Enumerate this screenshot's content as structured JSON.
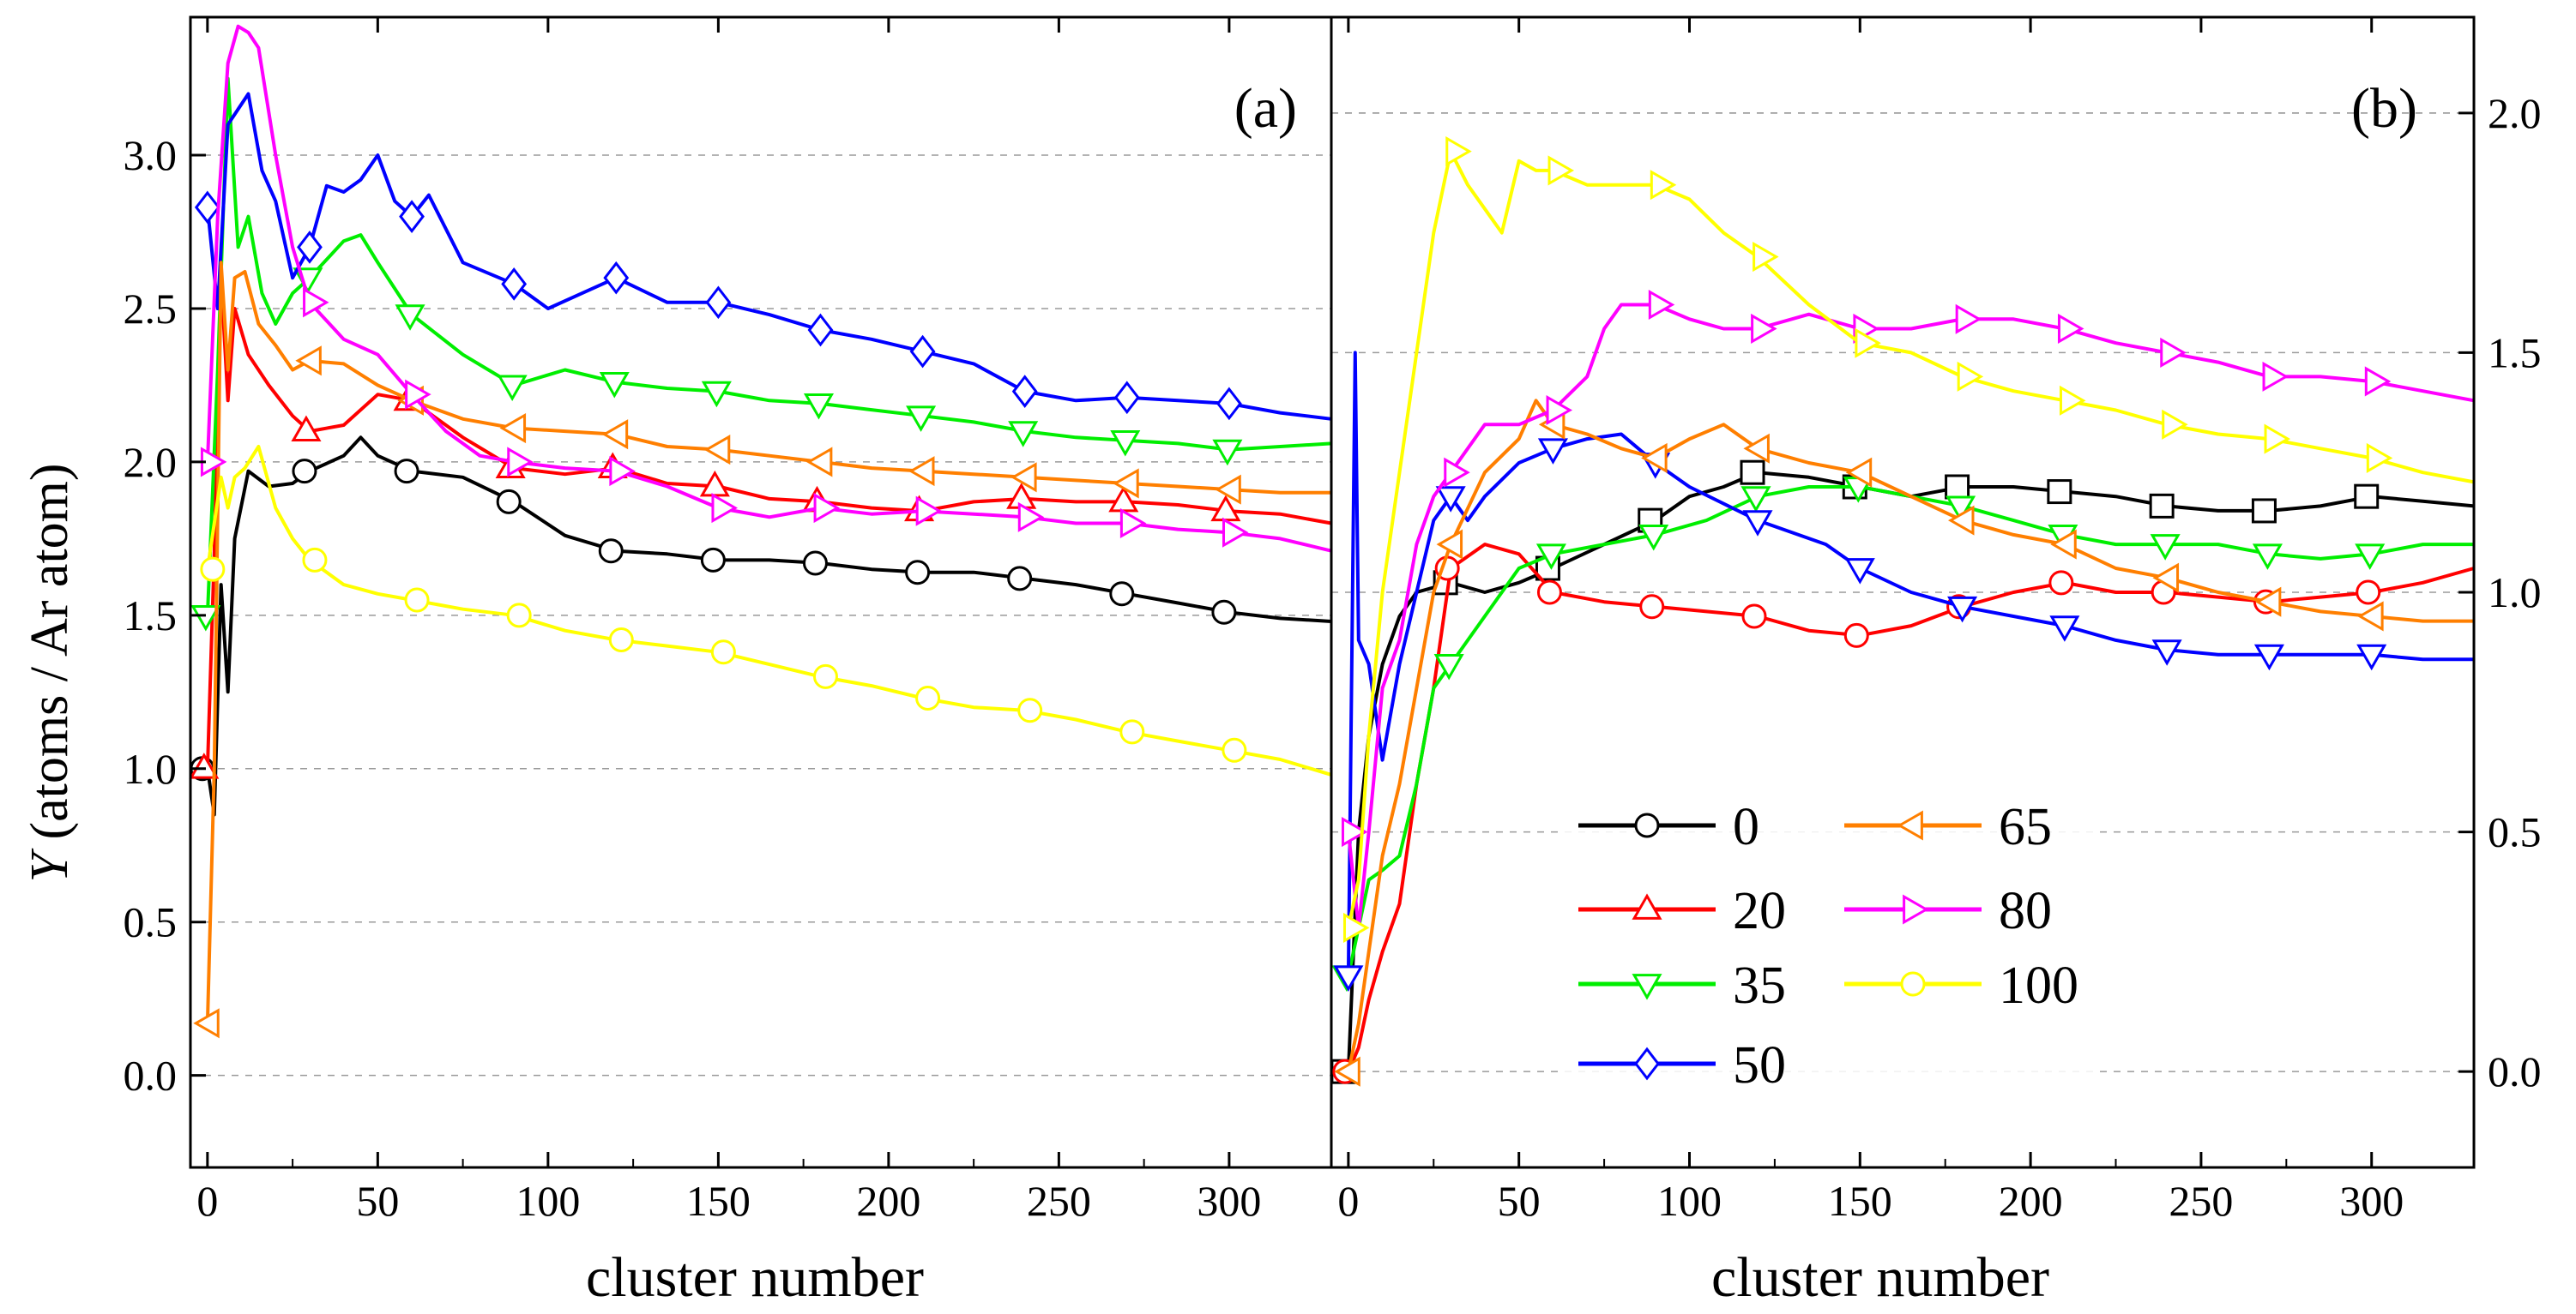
{
  "chart_data": [
    {
      "type": "line",
      "panel_label": "(a)",
      "xlabel": "cluster number",
      "ylabel_italic": "Y",
      "ylabel_rest": " (atoms / Ar atom)",
      "xlim": [
        -5,
        330
      ],
      "ylim": [
        -0.3,
        3.45
      ],
      "xticks": [
        0,
        50,
        100,
        150,
        200,
        250,
        300
      ],
      "xtick_labels": [
        "0",
        "50",
        "100",
        "150",
        "200",
        "250",
        "300"
      ],
      "yticks": [
        0.0,
        0.5,
        1.0,
        1.5,
        2.0,
        2.5,
        3.0
      ],
      "ytick_labels": [
        "0.0",
        "0.5",
        "1.0",
        "1.5",
        "2.0",
        "2.5",
        "3.0"
      ],
      "y_axis_side": "left",
      "grid": "horizontal dashed",
      "series": [
        {
          "name": "0",
          "color": "#000000",
          "marker": "circle",
          "x": [
            0,
            2,
            4,
            6,
            8,
            12,
            18,
            25,
            30,
            40,
            45,
            50,
            60,
            75,
            90,
            105,
            120,
            135,
            150,
            165,
            180,
            195,
            210,
            225,
            240,
            255,
            270,
            285,
            300,
            315,
            330
          ],
          "y": [
            1.0,
            0.85,
            1.6,
            1.25,
            1.75,
            1.97,
            1.92,
            1.93,
            1.97,
            2.02,
            2.08,
            2.02,
            1.97,
            1.95,
            1.87,
            1.76,
            1.71,
            1.7,
            1.68,
            1.68,
            1.67,
            1.65,
            1.64,
            1.64,
            1.62,
            1.6,
            1.57,
            1.54,
            1.51,
            1.49,
            1.48
          ]
        },
        {
          "name": "20",
          "color": "#ff0000",
          "marker": "triangle-up",
          "x": [
            0,
            2,
            4,
            6,
            8,
            12,
            18,
            25,
            30,
            40,
            50,
            60,
            75,
            90,
            105,
            120,
            135,
            150,
            165,
            180,
            195,
            210,
            225,
            240,
            255,
            270,
            285,
            300,
            315,
            330
          ],
          "y": [
            1.0,
            1.7,
            2.6,
            2.2,
            2.5,
            2.35,
            2.25,
            2.15,
            2.1,
            2.12,
            2.22,
            2.2,
            2.08,
            1.98,
            1.96,
            1.98,
            1.93,
            1.92,
            1.88,
            1.87,
            1.85,
            1.84,
            1.87,
            1.88,
            1.87,
            1.87,
            1.86,
            1.84,
            1.83,
            1.8
          ]
        },
        {
          "name": "35",
          "color": "#00ee00",
          "marker": "triangle-down",
          "x": [
            0,
            3,
            6,
            9,
            12,
            16,
            20,
            25,
            30,
            40,
            45,
            50,
            60,
            75,
            90,
            105,
            120,
            135,
            150,
            165,
            180,
            195,
            210,
            225,
            240,
            255,
            270,
            285,
            300,
            315,
            330
          ],
          "y": [
            1.5,
            2.3,
            3.25,
            2.7,
            2.8,
            2.55,
            2.45,
            2.55,
            2.6,
            2.72,
            2.74,
            2.65,
            2.48,
            2.35,
            2.25,
            2.3,
            2.26,
            2.24,
            2.23,
            2.2,
            2.19,
            2.17,
            2.15,
            2.13,
            2.1,
            2.08,
            2.07,
            2.06,
            2.04,
            2.05,
            2.06
          ]
        },
        {
          "name": "50",
          "color": "#0000ff",
          "marker": "diamond",
          "x": [
            0,
            3,
            6,
            9,
            12,
            16,
            20,
            25,
            30,
            35,
            40,
            45,
            50,
            55,
            60,
            65,
            75,
            90,
            100,
            110,
            120,
            135,
            150,
            165,
            180,
            195,
            210,
            225,
            240,
            255,
            270,
            285,
            300,
            315,
            330
          ],
          "y": [
            2.83,
            2.5,
            3.1,
            3.15,
            3.2,
            2.95,
            2.85,
            2.6,
            2.7,
            2.9,
            2.88,
            2.92,
            3.0,
            2.85,
            2.8,
            2.87,
            2.65,
            2.58,
            2.5,
            2.55,
            2.6,
            2.52,
            2.52,
            2.48,
            2.43,
            2.4,
            2.36,
            2.32,
            2.23,
            2.2,
            2.21,
            2.2,
            2.19,
            2.16,
            2.14
          ]
        },
        {
          "name": "65",
          "color": "#ff7f00",
          "marker": "triangle-left",
          "x": [
            0,
            2,
            4,
            6,
            8,
            11,
            15,
            20,
            25,
            30,
            40,
            50,
            60,
            75,
            90,
            105,
            120,
            135,
            150,
            165,
            180,
            195,
            210,
            225,
            240,
            255,
            270,
            285,
            300,
            315,
            330
          ],
          "y": [
            0.17,
            1.0,
            2.65,
            2.3,
            2.6,
            2.62,
            2.45,
            2.38,
            2.3,
            2.33,
            2.32,
            2.25,
            2.2,
            2.14,
            2.11,
            2.1,
            2.09,
            2.05,
            2.04,
            2.02,
            2.0,
            1.98,
            1.97,
            1.96,
            1.95,
            1.94,
            1.93,
            1.92,
            1.91,
            1.9,
            1.9
          ]
        },
        {
          "name": "80",
          "color": "#ff00ff",
          "marker": "triangle-right",
          "x": [
            0,
            3,
            6,
            9,
            12,
            15,
            20,
            25,
            30,
            40,
            50,
            60,
            70,
            80,
            90,
            105,
            120,
            135,
            150,
            165,
            180,
            195,
            210,
            225,
            240,
            255,
            270,
            285,
            300,
            315,
            330
          ],
          "y": [
            2.0,
            2.8,
            3.3,
            3.42,
            3.4,
            3.35,
            3.0,
            2.7,
            2.52,
            2.4,
            2.35,
            2.22,
            2.1,
            2.02,
            2.0,
            1.98,
            1.97,
            1.92,
            1.85,
            1.82,
            1.85,
            1.83,
            1.84,
            1.83,
            1.82,
            1.8,
            1.8,
            1.78,
            1.77,
            1.75,
            1.71
          ]
        },
        {
          "name": "100",
          "color": "#ffff00",
          "marker": "circle",
          "x": [
            0,
            2,
            4,
            6,
            8,
            11,
            15,
            20,
            25,
            30,
            40,
            50,
            60,
            75,
            90,
            105,
            120,
            135,
            150,
            165,
            180,
            195,
            210,
            225,
            240,
            255,
            270,
            285,
            300,
            315,
            330
          ],
          "y": [
            1.65,
            1.8,
            1.95,
            1.85,
            1.95,
            1.98,
            2.05,
            1.85,
            1.75,
            1.68,
            1.6,
            1.57,
            1.55,
            1.52,
            1.5,
            1.45,
            1.42,
            1.4,
            1.38,
            1.34,
            1.3,
            1.27,
            1.23,
            1.2,
            1.19,
            1.16,
            1.12,
            1.09,
            1.06,
            1.03,
            0.98
          ]
        }
      ]
    },
    {
      "type": "line",
      "panel_label": "(b)",
      "xlabel": "cluster number",
      "xlim": [
        -5,
        330
      ],
      "ylim": [
        -0.2,
        2.2
      ],
      "xticks": [
        0,
        50,
        100,
        150,
        200,
        250,
        300
      ],
      "xtick_labels": [
        "0",
        "50",
        "100",
        "150",
        "200",
        "250",
        "300"
      ],
      "yticks": [
        0.0,
        0.5,
        1.0,
        1.5,
        2.0
      ],
      "ytick_labels": [
        "0.0",
        "0.5",
        "1.0",
        "1.5",
        "2.0"
      ],
      "y_axis_side": "right",
      "grid": "horizontal dashed",
      "series": [
        {
          "name": "0",
          "color": "#000000",
          "marker": "square",
          "x": [
            0,
            3,
            6,
            10,
            15,
            20,
            30,
            40,
            50,
            60,
            75,
            90,
            100,
            110,
            120,
            135,
            150,
            165,
            180,
            195,
            210,
            225,
            240,
            255,
            270,
            285,
            300,
            315,
            330
          ],
          "y": [
            0.0,
            0.5,
            0.7,
            0.85,
            0.95,
            1.0,
            1.02,
            1.0,
            1.02,
            1.05,
            1.1,
            1.15,
            1.2,
            1.22,
            1.25,
            1.24,
            1.22,
            1.2,
            1.22,
            1.22,
            1.21,
            1.2,
            1.18,
            1.17,
            1.17,
            1.18,
            1.2,
            1.19,
            1.18
          ]
        },
        {
          "name": "20",
          "color": "#ff0000",
          "marker": "circle",
          "x": [
            0,
            3,
            6,
            10,
            15,
            20,
            25,
            30,
            40,
            50,
            60,
            75,
            90,
            105,
            120,
            135,
            150,
            165,
            180,
            195,
            210,
            225,
            240,
            255,
            270,
            285,
            300,
            315,
            330
          ],
          "y": [
            0.0,
            0.05,
            0.15,
            0.25,
            0.35,
            0.6,
            0.8,
            1.05,
            1.1,
            1.08,
            1.0,
            0.98,
            0.97,
            0.96,
            0.95,
            0.92,
            0.91,
            0.93,
            0.97,
            1.0,
            1.02,
            1.0,
            1.0,
            0.99,
            0.98,
            0.99,
            1.0,
            1.02,
            1.05
          ]
        },
        {
          "name": "35",
          "color": "#00ee00",
          "marker": "triangle-down",
          "x": [
            0,
            3,
            6,
            10,
            15,
            20,
            25,
            30,
            40,
            50,
            60,
            75,
            90,
            105,
            120,
            135,
            150,
            165,
            180,
            195,
            210,
            225,
            240,
            255,
            270,
            285,
            300,
            315,
            330
          ],
          "y": [
            0.2,
            0.3,
            0.4,
            0.42,
            0.45,
            0.6,
            0.8,
            0.85,
            0.95,
            1.05,
            1.08,
            1.1,
            1.12,
            1.15,
            1.2,
            1.22,
            1.22,
            1.2,
            1.18,
            1.15,
            1.12,
            1.1,
            1.1,
            1.1,
            1.08,
            1.07,
            1.08,
            1.1,
            1.1
          ]
        },
        {
          "name": "50",
          "color": "#0000ff",
          "marker": "triangle-down",
          "x": [
            0,
            2,
            3,
            6,
            10,
            15,
            20,
            25,
            30,
            35,
            40,
            50,
            60,
            70,
            80,
            90,
            100,
            120,
            140,
            150,
            165,
            180,
            195,
            210,
            225,
            240,
            255,
            270,
            285,
            300,
            315,
            330
          ],
          "y": [
            0.2,
            1.5,
            0.9,
            0.85,
            0.65,
            0.85,
            1.0,
            1.15,
            1.2,
            1.15,
            1.2,
            1.27,
            1.3,
            1.32,
            1.33,
            1.27,
            1.22,
            1.15,
            1.1,
            1.05,
            1.0,
            0.97,
            0.95,
            0.93,
            0.9,
            0.88,
            0.87,
            0.87,
            0.87,
            0.87,
            0.86,
            0.86
          ]
        },
        {
          "name": "65",
          "color": "#ff7f00",
          "marker": "triangle-left",
          "x": [
            0,
            3,
            6,
            10,
            15,
            20,
            25,
            30,
            40,
            50,
            55,
            60,
            70,
            80,
            90,
            100,
            110,
            120,
            135,
            150,
            165,
            180,
            195,
            210,
            225,
            240,
            255,
            270,
            285,
            300,
            315,
            330
          ],
          "y": [
            0.0,
            0.1,
            0.25,
            0.45,
            0.6,
            0.8,
            1.0,
            1.1,
            1.25,
            1.32,
            1.4,
            1.35,
            1.33,
            1.3,
            1.28,
            1.32,
            1.35,
            1.3,
            1.27,
            1.25,
            1.2,
            1.15,
            1.12,
            1.1,
            1.05,
            1.03,
            1.0,
            0.98,
            0.96,
            0.95,
            0.94,
            0.94
          ]
        },
        {
          "name": "80",
          "color": "#ff00ff",
          "marker": "triangle-right",
          "x": [
            0,
            3,
            6,
            10,
            15,
            20,
            25,
            30,
            40,
            50,
            60,
            70,
            75,
            80,
            90,
            100,
            110,
            120,
            135,
            150,
            165,
            180,
            195,
            210,
            225,
            240,
            255,
            270,
            285,
            300,
            315,
            330
          ],
          "y": [
            0.5,
            0.3,
            0.5,
            0.8,
            0.9,
            1.1,
            1.2,
            1.25,
            1.35,
            1.35,
            1.38,
            1.45,
            1.55,
            1.6,
            1.6,
            1.57,
            1.55,
            1.55,
            1.58,
            1.55,
            1.55,
            1.57,
            1.57,
            1.55,
            1.52,
            1.5,
            1.48,
            1.45,
            1.45,
            1.44,
            1.42,
            1.4
          ]
        },
        {
          "name": "100",
          "color": "#ffff00",
          "marker": "triangle-right",
          "x": [
            0,
            3,
            6,
            10,
            15,
            20,
            25,
            30,
            35,
            40,
            45,
            50,
            55,
            60,
            70,
            80,
            90,
            100,
            110,
            120,
            135,
            150,
            165,
            180,
            195,
            210,
            225,
            240,
            255,
            270,
            285,
            300,
            315,
            330
          ],
          "y": [
            0.3,
            0.4,
            0.7,
            1.0,
            1.25,
            1.5,
            1.75,
            1.92,
            1.85,
            1.8,
            1.75,
            1.9,
            1.88,
            1.88,
            1.85,
            1.85,
            1.85,
            1.82,
            1.75,
            1.7,
            1.6,
            1.52,
            1.5,
            1.45,
            1.42,
            1.4,
            1.38,
            1.35,
            1.33,
            1.32,
            1.3,
            1.28,
            1.25,
            1.23
          ]
        }
      ]
    }
  ],
  "legend": {
    "placement": "inside panel (b), lower-left",
    "entries": [
      {
        "label": "0",
        "color": "#000000",
        "marker": "circle"
      },
      {
        "label": "20",
        "color": "#ff0000",
        "marker": "triangle-up"
      },
      {
        "label": "35",
        "color": "#00ee00",
        "marker": "triangle-down"
      },
      {
        "label": "50",
        "color": "#0000ff",
        "marker": "diamond"
      },
      {
        "label": "65",
        "color": "#ff7f00",
        "marker": "triangle-left"
      },
      {
        "label": "80",
        "color": "#ff00ff",
        "marker": "triangle-right"
      },
      {
        "label": "100",
        "color": "#ffff00",
        "marker": "circle"
      }
    ]
  }
}
